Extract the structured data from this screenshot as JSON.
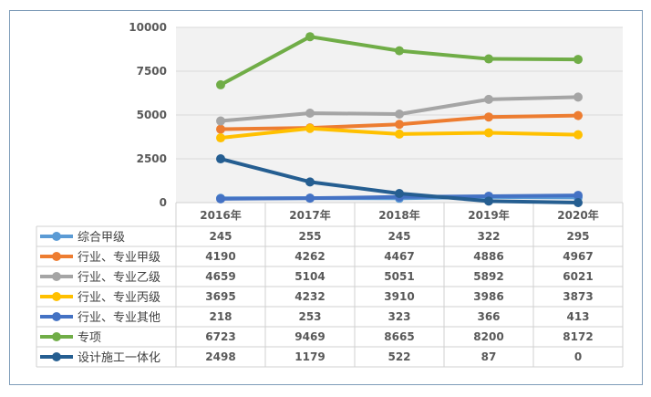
{
  "chart_data": {
    "type": "line",
    "title": "",
    "xlabel": "",
    "ylabel": "",
    "ylim": [
      0,
      10000
    ],
    "yticks": [
      "0",
      "2500",
      "5000",
      "7500",
      "10000"
    ],
    "grid": true,
    "legend_placement": "data-table-left",
    "categories": [
      "2016年",
      "2017年",
      "2018年",
      "2019年",
      "2020年"
    ],
    "series": [
      {
        "name": "综合甲级",
        "color": "#5b9bd5",
        "values": [
          245,
          255,
          245,
          322,
          295
        ]
      },
      {
        "name": "行业、专业甲级",
        "color": "#ed7d31",
        "values": [
          4190,
          4262,
          4467,
          4886,
          4967
        ]
      },
      {
        "name": "行业、专业乙级",
        "color": "#a5a5a5",
        "values": [
          4659,
          5104,
          5051,
          5892,
          6021
        ]
      },
      {
        "name": "行业、专业丙级",
        "color": "#ffc000",
        "values": [
          3695,
          4232,
          3910,
          3986,
          3873
        ]
      },
      {
        "name": "行业、专业其他",
        "color": "#4472c4",
        "values": [
          218,
          253,
          323,
          366,
          413
        ]
      },
      {
        "name": "专项",
        "color": "#70ad47",
        "values": [
          6723,
          9469,
          8665,
          8200,
          8172
        ]
      },
      {
        "name": "设计施工一体化",
        "color": "#255e91",
        "values": [
          2498,
          1179,
          522,
          87,
          0
        ]
      }
    ]
  }
}
